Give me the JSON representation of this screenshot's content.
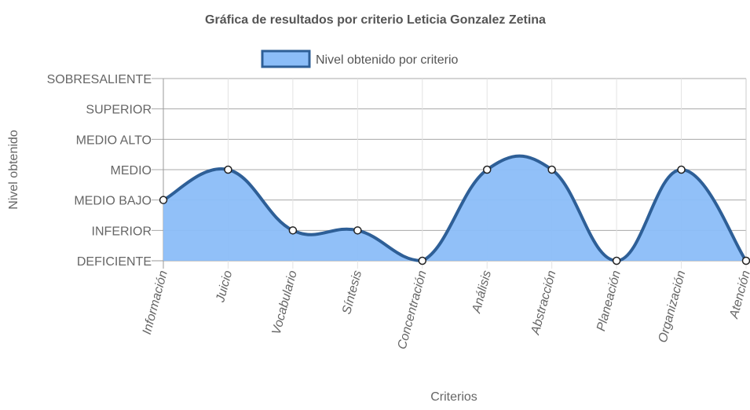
{
  "chart_data": {
    "type": "area",
    "title": "Gráfica de resultados por criterio Leticia Gonzalez Zetina",
    "xlabel": "Criterios",
    "ylabel": "Nivel obtenido",
    "y_levels": [
      "DEFICIENTE",
      "INFERIOR",
      "MEDIO BAJO",
      "MEDIO",
      "MEDIO ALTO",
      "SUPERIOR",
      "SOBRESALIENTE"
    ],
    "categories": [
      "Información",
      "Juicio",
      "Vocabulario",
      "Síntesis",
      "Concentración",
      "Análisis",
      "Abstracción",
      "Planeación",
      "Organización",
      "Atención"
    ],
    "series": [
      {
        "name": "Nivel obtenido por criterio",
        "values": [
          "MEDIO BAJO",
          "MEDIO",
          "INFERIOR",
          "INFERIOR",
          "DEFICIENTE",
          "MEDIO",
          "MEDIO",
          "DEFICIENTE",
          "MEDIO",
          "DEFICIENTE"
        ],
        "fill": "#8bbdf8",
        "stroke": "#2e5f97"
      }
    ],
    "legend_position": "top",
    "grid": true
  }
}
